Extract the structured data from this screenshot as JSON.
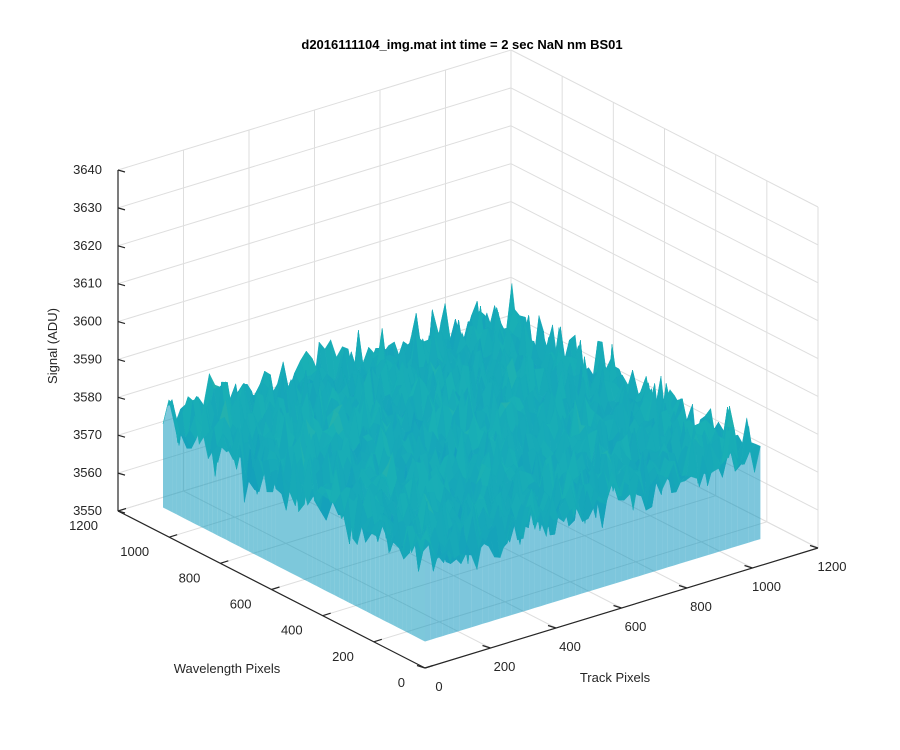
{
  "chart_data": {
    "type": "surface",
    "title": "d2016111104_img.mat int time = 2 sec  NaN nm BS01",
    "xlabel": "Track Pixels",
    "ylabel": "Wavelength Pixels",
    "zlabel": "Signal (ADU)",
    "xlim": [
      0,
      1200
    ],
    "ylim": [
      0,
      1200
    ],
    "zlim": [
      3550,
      3640
    ],
    "xticks": [
      "0",
      "200",
      "400",
      "600",
      "800",
      "1000",
      "1200"
    ],
    "yticks": [
      "0",
      "200",
      "400",
      "600",
      "800",
      "1000",
      "1200"
    ],
    "zticks": [
      "3550",
      "3560",
      "3570",
      "3580",
      "3590",
      "3600",
      "3610",
      "3620",
      "3630",
      "3640"
    ],
    "grid": true,
    "surface": {
      "x_range": [
        0,
        1024
      ],
      "y_range": [
        0,
        1024
      ],
      "mean_signal": 3580,
      "min_signal": 3555,
      "max_signal": 3620,
      "colormap": "parula"
    },
    "colors": {
      "low": "#0a7ec9",
      "mid": "#19b0b5",
      "high": "#c9c83c"
    }
  }
}
